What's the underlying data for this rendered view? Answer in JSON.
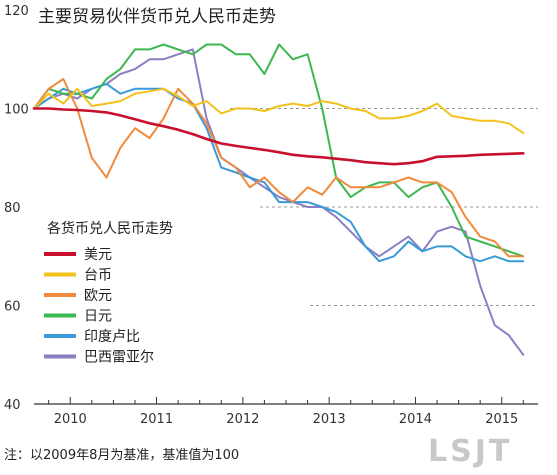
{
  "chart_data": {
    "type": "line",
    "title": "主要贸易伙伴货币兑人民币走势",
    "note": "注：以2009年8月为基准，基准值为100",
    "watermark": "LSJT",
    "legend_title": "各货币兑人民币走势",
    "legend_placement": "lower-left",
    "xlabel": "",
    "ylabel": "",
    "x_ticks": [
      "2010",
      "2011",
      "2012",
      "2013",
      "2014",
      "2015"
    ],
    "x_tick_values": [
      2010.0,
      2011.0,
      2012.0,
      2013.0,
      2014.0,
      2015.0
    ],
    "y_ticks": [
      40,
      60,
      80,
      100,
      120
    ],
    "xlim": [
      2009.58,
      2015.42
    ],
    "ylim": [
      40,
      120
    ],
    "grid": "dashed horizontal at 60, 80, 100",
    "x": [
      2009.58,
      2009.75,
      2009.92,
      2010.08,
      2010.25,
      2010.42,
      2010.58,
      2010.75,
      2010.92,
      2011.08,
      2011.25,
      2011.42,
      2011.58,
      2011.75,
      2011.92,
      2012.08,
      2012.25,
      2012.42,
      2012.58,
      2012.75,
      2012.92,
      2013.08,
      2013.25,
      2013.42,
      2013.58,
      2013.75,
      2013.92,
      2014.08,
      2014.25,
      2014.42,
      2014.58,
      2014.75,
      2014.92,
      2015.08,
      2015.25
    ],
    "series": [
      {
        "name": "美元",
        "color": "#c8102e",
        "width": 2.6,
        "values": [
          100,
          100,
          99.8,
          99.7,
          99.5,
          99.2,
          98.6,
          97.8,
          97.0,
          96.4,
          95.7,
          94.8,
          93.8,
          92.9,
          92.4,
          92.0,
          91.6,
          91.1,
          90.6,
          90.3,
          90.1,
          89.8,
          89.5,
          89.1,
          88.9,
          88.7,
          88.9,
          89.3,
          90.2,
          90.3,
          90.4,
          90.6,
          90.7,
          90.8,
          90.9
        ]
      },
      {
        "name": "台币",
        "color": "#f2c21b",
        "width": 2,
        "values": [
          100,
          103,
          101,
          104,
          100.5,
          101,
          101.5,
          103,
          103.5,
          104,
          102.5,
          100.5,
          101.5,
          99,
          100,
          100,
          99.5,
          100.5,
          101,
          100.5,
          101.5,
          101,
          100,
          99.5,
          98,
          98,
          98.5,
          99.5,
          101,
          98.5,
          98,
          97.5,
          97.5,
          97,
          95
        ]
      },
      {
        "name": "欧元",
        "color": "#f08a3c",
        "width": 2,
        "values": [
          100,
          104,
          106,
          100,
          90,
          86,
          92,
          96,
          94,
          98,
          104,
          101,
          97,
          90,
          88,
          84,
          86,
          83,
          81,
          84,
          82.5,
          86,
          84,
          84,
          84,
          85,
          86,
          85,
          85,
          83,
          78,
          74,
          73,
          70,
          70
        ]
      },
      {
        "name": "日元",
        "color": "#3cb850",
        "width": 2,
        "values": [
          100,
          104,
          103,
          103,
          102,
          106,
          108,
          112,
          112,
          113,
          112,
          111,
          113,
          113,
          111,
          111,
          107,
          113,
          110,
          111,
          100,
          86,
          82,
          84,
          85,
          85,
          82,
          84,
          85,
          80,
          74,
          73,
          72,
          71,
          70
        ]
      },
      {
        "name": "印度卢比",
        "color": "#3a9ad9",
        "width": 2,
        "values": [
          100,
          102,
          104,
          103,
          104,
          105,
          103,
          104,
          104,
          104,
          102,
          101,
          96,
          88,
          87,
          86,
          85,
          81,
          81,
          81,
          80,
          79,
          77,
          72,
          69,
          70,
          73,
          71,
          72,
          72,
          70,
          69,
          70,
          69,
          69
        ]
      },
      {
        "name": "巴西雷亚尔",
        "color": "#8a7fc2",
        "width": 2,
        "values": [
          100,
          102,
          103,
          102,
          104,
          105,
          107,
          108,
          110,
          110,
          111,
          112,
          98,
          90,
          88,
          86,
          84,
          82,
          81,
          80,
          80,
          78,
          75,
          72,
          70,
          72,
          74,
          71,
          75,
          76,
          75,
          64,
          56,
          54,
          50
        ]
      }
    ]
  }
}
